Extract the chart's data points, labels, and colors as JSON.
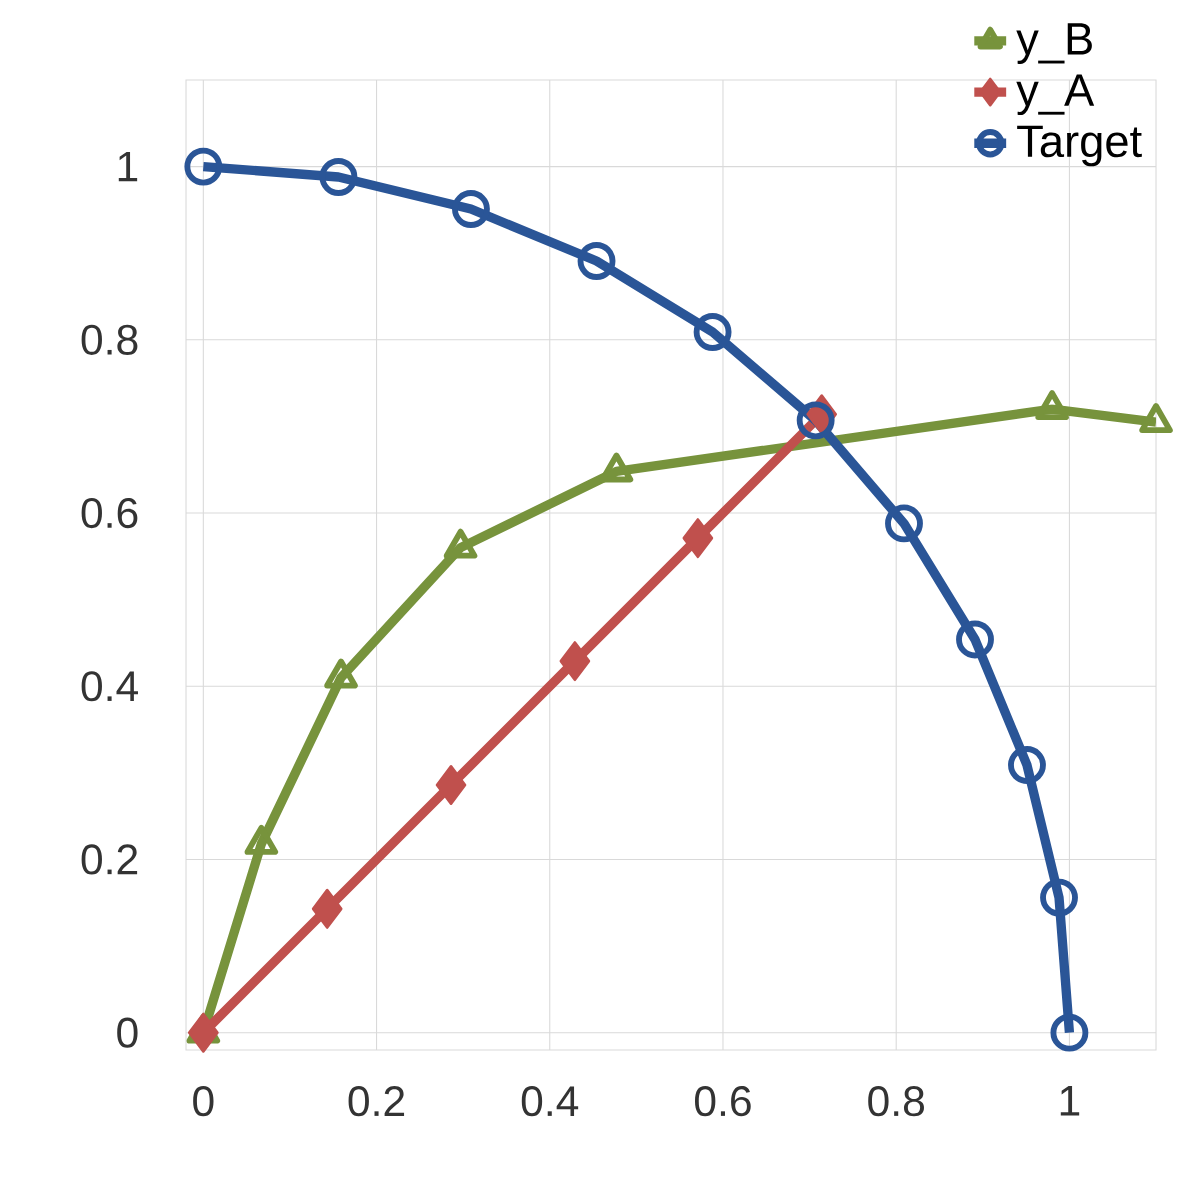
{
  "chart_data": {
    "type": "line",
    "xlim": [
      -0.02,
      1.1
    ],
    "ylim": [
      -0.02,
      1.1
    ],
    "xticks": [
      0,
      0.2,
      0.4,
      0.6,
      0.8,
      1
    ],
    "yticks": [
      0,
      0.2,
      0.4,
      0.6,
      0.8,
      1
    ],
    "grid": true,
    "legend": "top right",
    "series": [
      {
        "name": "y_B",
        "color": "#77933c",
        "marker": "triangle",
        "x": [
          0,
          0.067,
          0.159,
          0.297,
          0.477,
          0.98,
          1.1
        ],
        "values": [
          0,
          0.218,
          0.41,
          0.56,
          0.648,
          0.72,
          0.705
        ]
      },
      {
        "name": "y_A",
        "color": "#c0504d",
        "marker": "diamond",
        "x": [
          0,
          0.143,
          0.286,
          0.429,
          0.571,
          0.714
        ],
        "values": [
          0,
          0.143,
          0.286,
          0.429,
          0.571,
          0.714
        ]
      },
      {
        "name": "Target",
        "color": "#2a5597",
        "marker": "circle",
        "x": [
          0,
          0.156,
          0.309,
          0.454,
          0.588,
          0.707,
          0.809,
          0.891,
          0.951,
          0.988,
          1
        ],
        "values": [
          1,
          0.988,
          0.951,
          0.891,
          0.809,
          0.707,
          0.588,
          0.454,
          0.309,
          0.156,
          0
        ]
      }
    ]
  }
}
